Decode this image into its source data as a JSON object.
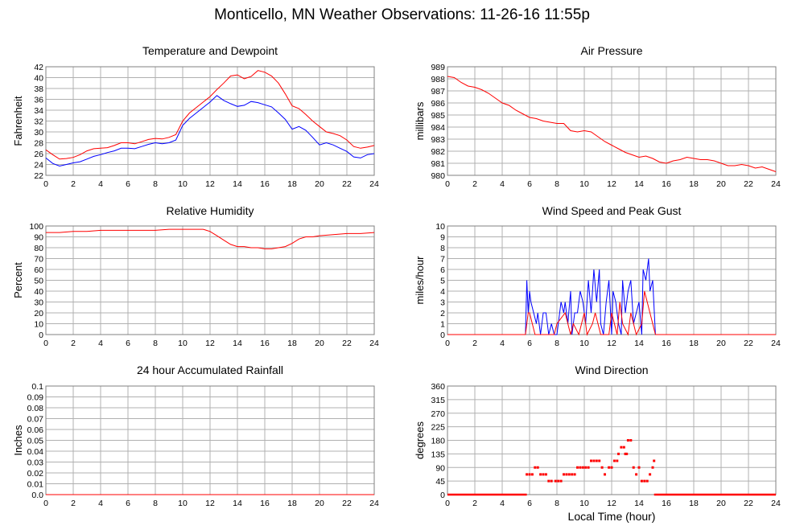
{
  "title": "Monticello, MN Weather Observations: 11-26-16 11:55p",
  "xlabel_bottom_right": "Local Time (hour)",
  "colors": {
    "red": "#ff0000",
    "blue": "#0000ff",
    "grid": "#b0b0b0",
    "frame": "#808080"
  },
  "chart_data": [
    {
      "id": "temp",
      "type": "line",
      "title": "Temperature and Dewpoint",
      "ylabel": "Fahrenheit",
      "xlim": [
        0,
        24
      ],
      "ylim": [
        22,
        42
      ],
      "xticks": [
        0,
        2,
        4,
        6,
        8,
        10,
        12,
        14,
        16,
        18,
        20,
        22,
        24
      ],
      "yticks": [
        22,
        24,
        26,
        28,
        30,
        32,
        34,
        36,
        38,
        40,
        42
      ],
      "series": [
        {
          "color": "#ff0000",
          "x": [
            0,
            0.5,
            1,
            1.5,
            2,
            2.5,
            3,
            3.5,
            4,
            4.5,
            5,
            5.5,
            6,
            6.5,
            7,
            7.5,
            8,
            8.5,
            9,
            9.5,
            10,
            10.5,
            11,
            11.5,
            12,
            12.5,
            13,
            13.5,
            14,
            14.5,
            15,
            15.5,
            16,
            16.5,
            17,
            17.5,
            18,
            18.5,
            19,
            19.5,
            20,
            20.5,
            21,
            21.5,
            22,
            22.5,
            23,
            23.5,
            24
          ],
          "y": [
            26.7,
            25.8,
            25,
            25.1,
            25.3,
            25.8,
            26.5,
            26.9,
            27,
            27.1,
            27.5,
            28,
            28,
            27.8,
            28.2,
            28.6,
            28.8,
            28.7,
            29,
            29.5,
            32,
            33.5,
            34.5,
            35.5,
            36.5,
            37.8,
            39,
            40.3,
            40.5,
            39.8,
            40.2,
            41.3,
            41,
            40.3,
            39,
            37,
            34.8,
            34.3,
            33.2,
            32,
            31,
            30,
            29.7,
            29.3,
            28.5,
            27.3,
            27,
            27.2,
            27.5
          ]
        },
        {
          "color": "#0000ff",
          "x": [
            0,
            0.5,
            1,
            1.5,
            2,
            2.5,
            3,
            3.5,
            4,
            4.5,
            5,
            5.5,
            6,
            6.5,
            7,
            7.5,
            8,
            8.5,
            9,
            9.5,
            10,
            10.5,
            11,
            11.5,
            12,
            12.5,
            13,
            13.5,
            14,
            14.5,
            15,
            15.5,
            16,
            16.5,
            17,
            17.5,
            18,
            18.5,
            19,
            19.5,
            20,
            20.5,
            21,
            21.5,
            22,
            22.5,
            23,
            23.5,
            24
          ],
          "y": [
            25.2,
            24.2,
            23.7,
            24,
            24.3,
            24.5,
            25,
            25.5,
            25.8,
            26.2,
            26.5,
            27,
            27,
            26.9,
            27.3,
            27.7,
            28,
            27.8,
            28,
            28.5,
            31.2,
            32.5,
            33.5,
            34.5,
            35.5,
            36.7,
            35.8,
            35.2,
            34.7,
            34.9,
            35.6,
            35.4,
            35,
            34.6,
            33.5,
            32.3,
            30.5,
            31,
            30.3,
            29,
            27.6,
            28,
            27.6,
            27,
            26.4,
            25.4,
            25.2,
            25.8,
            26
          ]
        }
      ]
    },
    {
      "id": "pressure",
      "type": "line",
      "title": "Air Pressure",
      "ylabel": "millibars",
      "xlim": [
        0,
        24
      ],
      "ylim": [
        980,
        989
      ],
      "xticks": [
        0,
        2,
        4,
        6,
        8,
        10,
        12,
        14,
        16,
        18,
        20,
        22,
        24
      ],
      "yticks": [
        980,
        981,
        982,
        983,
        984,
        985,
        986,
        987,
        988,
        989
      ],
      "series": [
        {
          "color": "#ff0000",
          "x": [
            0,
            0.5,
            1,
            1.5,
            2,
            2.5,
            3,
            3.5,
            4,
            4.5,
            5,
            5.5,
            6,
            6.5,
            7,
            7.5,
            8,
            8.5,
            9,
            9.5,
            10,
            10.5,
            11,
            11.5,
            12,
            12.5,
            13,
            13.5,
            14,
            14.5,
            15,
            15.5,
            16,
            16.5,
            17,
            17.5,
            18,
            18.5,
            19,
            19.5,
            20,
            20.5,
            21,
            21.5,
            22,
            22.5,
            23,
            23.5,
            24
          ],
          "y": [
            988.2,
            988.1,
            987.7,
            987.4,
            987.3,
            987.1,
            986.8,
            986.4,
            986,
            985.8,
            985.4,
            985.1,
            984.8,
            984.7,
            984.5,
            984.4,
            984.3,
            984.3,
            983.7,
            983.6,
            983.7,
            983.6,
            983.2,
            982.8,
            982.5,
            982.2,
            981.9,
            981.7,
            981.5,
            981.6,
            981.4,
            981.1,
            981,
            981.2,
            981.3,
            981.5,
            981.4,
            981.3,
            981.3,
            981.2,
            981,
            980.8,
            980.8,
            980.9,
            980.8,
            980.6,
            980.7,
            980.5,
            980.3
          ]
        }
      ]
    },
    {
      "id": "humidity",
      "type": "line",
      "title": "Relative Humidity",
      "ylabel": "Percent",
      "xlim": [
        0,
        24
      ],
      "ylim": [
        0,
        100
      ],
      "xticks": [
        0,
        2,
        4,
        6,
        8,
        10,
        12,
        14,
        16,
        18,
        20,
        22,
        24
      ],
      "yticks": [
        0,
        10,
        20,
        30,
        40,
        50,
        60,
        70,
        80,
        90,
        100
      ],
      "series": [
        {
          "color": "#ff0000",
          "x": [
            0,
            1,
            2,
            3,
            4,
            5,
            6,
            7,
            8,
            9,
            10,
            11,
            11.5,
            12,
            12.5,
            13,
            13.5,
            14,
            14.5,
            15,
            15.5,
            16,
            16.5,
            17,
            17.5,
            18,
            18.5,
            19,
            19.5,
            20,
            21,
            22,
            23,
            24
          ],
          "y": [
            94,
            94,
            95,
            95,
            96,
            96,
            96,
            96,
            96,
            97,
            97,
            97,
            97,
            95,
            91,
            87,
            83,
            81,
            81,
            80,
            80,
            79,
            79,
            80,
            81,
            84,
            88,
            90,
            90,
            91,
            92,
            93,
            93,
            94
          ]
        }
      ]
    },
    {
      "id": "wind",
      "type": "line",
      "title": "Wind Speed and Peak Gust",
      "ylabel": "miles/hour",
      "xlim": [
        0,
        24
      ],
      "ylim": [
        0,
        10
      ],
      "xticks": [
        0,
        2,
        4,
        6,
        8,
        10,
        12,
        14,
        16,
        18,
        20,
        22,
        24
      ],
      "yticks": [
        0,
        1,
        2,
        3,
        4,
        5,
        6,
        7,
        8,
        9,
        10
      ],
      "series": [
        {
          "color": "#0000ff",
          "x": [
            0,
            5.7,
            5.8,
            5.9,
            6.0,
            6.1,
            6.3,
            6.5,
            6.6,
            6.8,
            7.0,
            7.2,
            7.4,
            7.6,
            7.8,
            8.0,
            8.2,
            8.3,
            8.5,
            8.6,
            8.8,
            9.0,
            9.1,
            9.3,
            9.5,
            9.7,
            9.9,
            10.1,
            10.3,
            10.5,
            10.7,
            10.9,
            11.1,
            11.2,
            11.4,
            11.6,
            11.8,
            12.0,
            12.1,
            12.3,
            12.5,
            12.7,
            12.8,
            13.0,
            13.2,
            13.4,
            13.6,
            13.8,
            14.0,
            14.2,
            14.3,
            14.5,
            14.7,
            14.8,
            15.0,
            15.2,
            24
          ],
          "y": [
            0,
            0,
            5,
            2,
            4,
            3,
            2,
            1,
            2,
            0,
            2,
            2,
            0,
            1,
            0,
            0,
            2,
            3,
            2,
            3,
            1,
            4,
            0,
            2,
            2,
            4,
            3,
            1,
            5,
            2,
            6,
            3,
            6,
            1,
            0,
            3,
            5,
            0,
            4,
            3,
            1,
            0,
            5,
            2,
            4,
            5,
            1,
            2,
            3,
            0,
            6,
            5,
            7,
            4,
            5,
            0,
            0
          ]
        },
        {
          "color": "#ff0000",
          "x": [
            0,
            5.7,
            5.9,
            6.0,
            6.2,
            6.4,
            7.8,
            8.0,
            8.6,
            8.8,
            9.0,
            9.2,
            9.6,
            9.8,
            10.0,
            10.2,
            10.6,
            10.8,
            11.0,
            11.2,
            11.8,
            12.0,
            12.2,
            12.4,
            12.6,
            12.8,
            13.2,
            13.4,
            13.6,
            13.8,
            14.2,
            14.4,
            14.6,
            14.8,
            15.0,
            15.2,
            24
          ],
          "y": [
            0,
            0,
            2,
            2,
            1,
            0,
            0,
            1,
            2,
            1,
            0,
            1,
            0,
            1,
            2,
            0,
            1,
            2,
            1,
            0,
            0,
            2,
            1,
            0,
            3,
            1,
            0,
            2,
            1,
            0,
            1,
            4,
            3,
            2,
            1,
            0,
            0
          ]
        }
      ]
    },
    {
      "id": "rain",
      "type": "line",
      "title": "24 hour Accumulated Rainfall",
      "ylabel": "Inches",
      "xlim": [
        0,
        24
      ],
      "ylim": [
        0,
        0.1
      ],
      "xticks": [
        0,
        2,
        4,
        6,
        8,
        10,
        12,
        14,
        16,
        18,
        20,
        22,
        24
      ],
      "yticks": [
        0.0,
        0.01,
        0.02,
        0.03,
        0.04,
        0.05,
        0.06,
        0.07,
        0.08,
        0.09,
        0.1
      ],
      "ytick_labels": [
        "0.0",
        "0.01",
        "0.02",
        "0.03",
        "0.04",
        "0.05",
        "0.06",
        "0.07",
        "0.08",
        "0.09",
        "0.1"
      ],
      "series": [
        {
          "color": "#ff0000",
          "x": [
            0,
            24
          ],
          "y": [
            0,
            0
          ]
        }
      ]
    },
    {
      "id": "direction",
      "type": "scatter",
      "title": "Wind Direction",
      "ylabel": "degrees",
      "xlabel": "Local Time (hour)",
      "xlim": [
        0,
        24
      ],
      "ylim": [
        0,
        360
      ],
      "xticks": [
        0,
        2,
        4,
        6,
        8,
        10,
        12,
        14,
        16,
        18,
        20,
        22,
        24
      ],
      "yticks": [
        0,
        45,
        90,
        135,
        180,
        225,
        270,
        315,
        360
      ],
      "series": [
        {
          "color": "#ff0000",
          "x": [
            5.8,
            6.0,
            6.2,
            6.4,
            6.6,
            6.8,
            7.0,
            7.2,
            7.4,
            7.6,
            7.9,
            8.1,
            8.3,
            8.5,
            8.7,
            8.9,
            9.1,
            9.3,
            9.5,
            9.7,
            9.9,
            10.1,
            10.3,
            10.5,
            10.7,
            10.9,
            11.1,
            11.3,
            11.5,
            11.8,
            12.0,
            12.2,
            12.4,
            12.5,
            12.7,
            12.9,
            13.0,
            13.1,
            13.2,
            13.4,
            13.6,
            13.8,
            14.0,
            14.2,
            14.4,
            14.6,
            14.8,
            15.0,
            15.1
          ],
          "y": [
            67,
            67,
            67,
            90,
            90,
            67,
            67,
            67,
            45,
            45,
            45,
            45,
            45,
            67,
            67,
            67,
            67,
            67,
            90,
            90,
            90,
            90,
            90,
            112,
            112,
            112,
            112,
            90,
            67,
            90,
            90,
            112,
            112,
            135,
            157,
            157,
            135,
            135,
            180,
            180,
            90,
            67,
            90,
            45,
            45,
            45,
            67,
            90,
            112
          ]
        },
        {
          "color": "#ff0000",
          "x": [
            0,
            5.8
          ],
          "y": [
            0,
            0
          ],
          "style": "baseline"
        },
        {
          "color": "#ff0000",
          "x": [
            15.1,
            24
          ],
          "y": [
            0,
            0
          ],
          "style": "baseline"
        }
      ]
    }
  ]
}
